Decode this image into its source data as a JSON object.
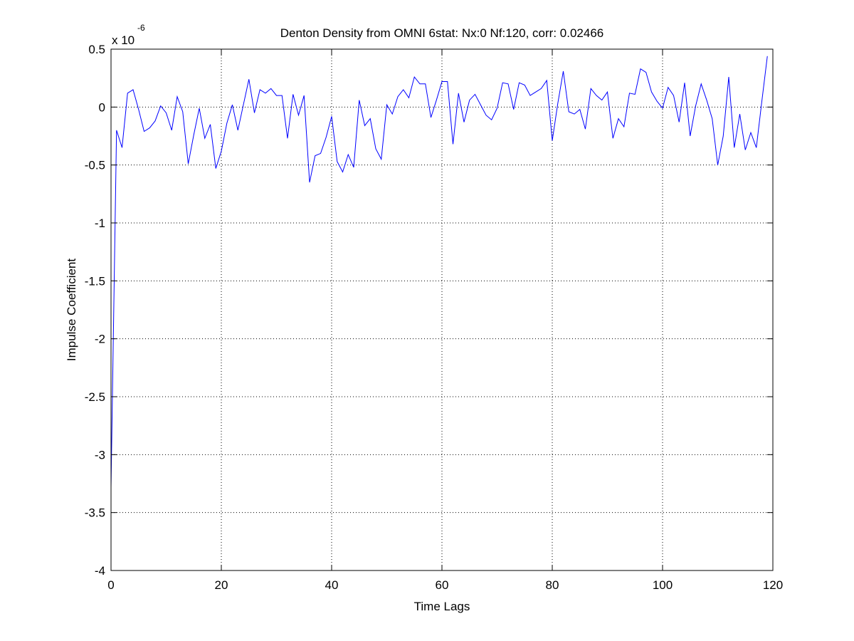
{
  "chart_data": {
    "type": "line",
    "title": "Denton Density from OMNI 6stat: Nx:0 Nf:120, corr: 0.02466",
    "xlabel": "Time Lags",
    "ylabel": "Impulse Coefficient",
    "y_exponent_base": "x 10",
    "y_exponent": "-6",
    "xlim": [
      0,
      120
    ],
    "ylim": [
      -4,
      0.5
    ],
    "xticks": [
      0,
      20,
      40,
      60,
      80,
      100,
      120
    ],
    "xtick_labels": [
      "0",
      "20",
      "40",
      "60",
      "80",
      "100",
      "120"
    ],
    "yticks": [
      -4,
      -3.5,
      -3,
      -2.5,
      -2,
      -1.5,
      -1,
      -0.5,
      0,
      0.5
    ],
    "ytick_labels": [
      "-4",
      "-3.5",
      "-3",
      "-2.5",
      "-2",
      "-1.5",
      "-1",
      "-0.5",
      "0",
      "0.5"
    ],
    "grid": true,
    "grid_style": "dotted",
    "series_color": "#0000ff",
    "series": [
      {
        "x": [
          0,
          1,
          2,
          3,
          4,
          5,
          6,
          7,
          8,
          9,
          10,
          11,
          12,
          13,
          14,
          15,
          16,
          17,
          18,
          19,
          20,
          21,
          22,
          23,
          24,
          25,
          26,
          27,
          28,
          29,
          30,
          31,
          32,
          33,
          34,
          35,
          36,
          37,
          38,
          39,
          40,
          41,
          42,
          43,
          44,
          45,
          46,
          47,
          48,
          49,
          50,
          51,
          52,
          53,
          54,
          55,
          56,
          57,
          58,
          59,
          60,
          61,
          62,
          63,
          64,
          65,
          66,
          67,
          68,
          69,
          70,
          71,
          72,
          73,
          74,
          75,
          76,
          77,
          78,
          79,
          80,
          81,
          82,
          83,
          84,
          85,
          86,
          87,
          88,
          89,
          90,
          91,
          92,
          93,
          94,
          95,
          96,
          97,
          98,
          99,
          100,
          101,
          102,
          103,
          104,
          105,
          106,
          107,
          108,
          109,
          110,
          111,
          112,
          113,
          114,
          115,
          116,
          117,
          118,
          119
        ],
        "values": [
          -3.28,
          -0.2,
          -0.35,
          0.12,
          0.15,
          -0.02,
          -0.21,
          -0.18,
          -0.12,
          0.01,
          -0.05,
          -0.2,
          0.09,
          -0.04,
          -0.49,
          -0.24,
          -0.01,
          -0.27,
          -0.15,
          -0.53,
          -0.38,
          -0.14,
          0.02,
          -0.2,
          0.02,
          0.24,
          -0.05,
          0.15,
          0.12,
          0.16,
          0.1,
          0.1,
          -0.27,
          0.11,
          -0.07,
          0.1,
          -0.65,
          -0.42,
          -0.4,
          -0.26,
          -0.08,
          -0.47,
          -0.56,
          -0.41,
          -0.52,
          0.06,
          -0.16,
          -0.1,
          -0.36,
          -0.45,
          0.02,
          -0.06,
          0.09,
          0.15,
          0.08,
          0.26,
          0.2,
          0.2,
          -0.09,
          0.06,
          0.22,
          0.22,
          -0.32,
          0.12,
          -0.13,
          0.06,
          0.11,
          0.02,
          -0.07,
          -0.11,
          -0.01,
          0.21,
          0.2,
          -0.02,
          0.21,
          0.19,
          0.1,
          0.13,
          0.16,
          0.23,
          -0.29,
          0.03,
          0.31,
          -0.04,
          -0.06,
          -0.02,
          -0.19,
          0.16,
          0.1,
          0.06,
          0.13,
          -0.27,
          -0.1,
          -0.17,
          0.12,
          0.11,
          0.33,
          0.3,
          0.13,
          0.05,
          -0.01,
          0.17,
          0.1,
          -0.13,
          0.21,
          -0.25,
          0.01,
          0.2,
          0.06,
          -0.1,
          -0.5,
          -0.25,
          0.26,
          -0.35,
          -0.06,
          -0.37,
          -0.22,
          -0.35,
          0.05,
          0.44
        ]
      }
    ]
  }
}
